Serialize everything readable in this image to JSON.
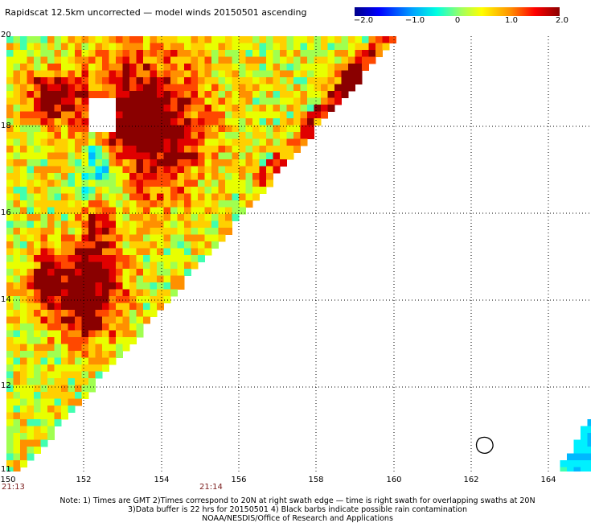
{
  "title": "Rapidscat 12.5km uncorrected — model winds 20150501 ascending",
  "colorbar": {
    "labels": [
      "−2.0",
      "−1.0",
      "0",
      "1.0",
      "2.0"
    ],
    "stops": [
      "#0000a0",
      "#0000ff",
      "#00d0ff",
      "#40ffc0",
      "#ffff40",
      "#ffa000",
      "#ff2000",
      "#a00000"
    ]
  },
  "map": {
    "lon_range": [
      150,
      165
    ],
    "lat_range": [
      11,
      20
    ],
    "lon_ticks": [
      "150",
      "152",
      "154",
      "156",
      "158",
      "160",
      "162",
      "164"
    ],
    "lat_ticks": [
      "20",
      "18",
      "16",
      "14",
      "12",
      "11"
    ],
    "grid": "dotted"
  },
  "times": [
    "21:13",
    "21:14"
  ],
  "notes": [
    "Note: 1) Times are GMT 2)Times correspond to 20N at right swath edge — time is right swath for overlapping swaths at 20N",
    "3)Data buffer is 22 hrs for 20150501 4) Black barbs indicate possible rain contamination",
    "NOAA/NESDIS/Office of Research and Applications"
  ]
}
